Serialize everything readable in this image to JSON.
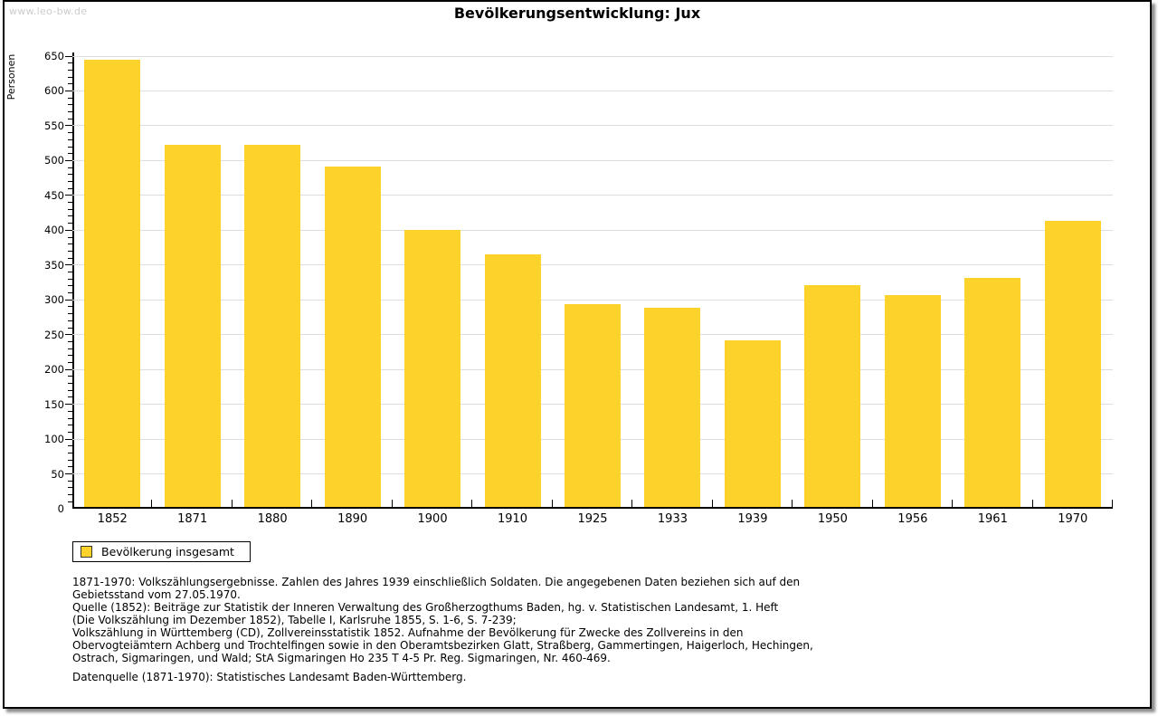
{
  "watermark": "www.leo-bw.de",
  "title": "Bevölkerungsentwicklung: Jux",
  "colors": {
    "bar": "#FCD22B",
    "grid": "#DDDDDD",
    "axis": "#000000",
    "watermark": "#CCCCCC",
    "legend_swatch_border": "#3A3A2A"
  },
  "chart_data": {
    "type": "bar",
    "title": "Bevölkerungsentwicklung: Jux",
    "xlabel": "",
    "ylabel": "Personen",
    "categories": [
      "1852",
      "1871",
      "1880",
      "1890",
      "1900",
      "1910",
      "1925",
      "1933",
      "1939",
      "1950",
      "1956",
      "1961",
      "1970"
    ],
    "series": [
      {
        "name": "Bevölkerung insgesamt",
        "values": [
          645,
          522,
          522,
          492,
          400,
          365,
          294,
          289,
          242,
          321,
          307,
          331,
          413
        ]
      }
    ],
    "ylim": [
      0,
      650
    ],
    "y_major_step": 50,
    "y_minor_step": 10,
    "grid": "horizontal-major",
    "legend_position": "bottom-left",
    "bar_color": "#FCD22B"
  },
  "legend": {
    "label": "Bevölkerung insgesamt"
  },
  "notes": [
    "1871-1970: Volkszählungsergebnisse. Zahlen des Jahres 1939 einschließlich Soldaten. Die angegebenen Daten beziehen sich auf den",
    "Gebietsstand vom 27.05.1970.",
    "Quelle (1852): Beiträge zur Statistik der Inneren Verwaltung des Großherzogthums Baden, hg. v. Statistischen Landesamt, 1. Heft",
    "(Die Volkszählung im Dezember 1852), Tabelle I, Karlsruhe 1855, S. 1-6, S. 7-239;",
    "Volkszählung in Württemberg (CD), Zollvereinsstatistik 1852. Aufnahme der Bevölkerung für Zwecke des Zollvereins in den",
    "Obervogteiämtern Achberg und Trochtelfingen sowie in den Oberamtsbezirken Glatt, Straßberg, Gammertingen, Haigerloch, Hechingen,",
    "Ostrach, Sigmaringen, und Wald; StA Sigmaringen Ho 235 T 4-5 Pr. Reg. Sigmaringen, Nr. 460-469."
  ],
  "datasource": "Datenquelle (1871-1970): Statistisches Landesamt Baden-Württemberg."
}
